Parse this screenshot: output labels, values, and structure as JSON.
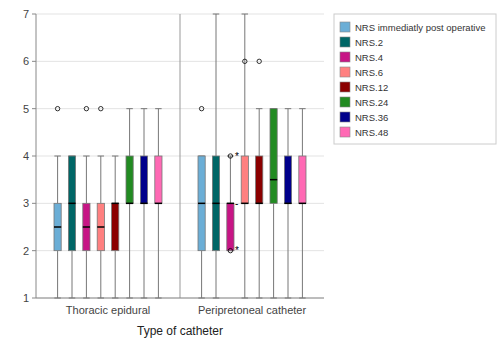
{
  "chart_data": {
    "type": "box",
    "title": "",
    "xlabel": "Type of catheter",
    "categories": [
      "Thoracic epidural",
      "Peripretoneal catheter"
    ],
    "series": [
      {
        "name": "NRS immediatly post operative",
        "color": "#6baed6",
        "values": [
          {
            "q1": 2.0,
            "median": 2.5,
            "q3": 3.0,
            "whislo": 1.0,
            "whishi": 4.0,
            "fliers": [
              5.0
            ]
          },
          {
            "q1": 2.0,
            "median": 3.0,
            "q3": 4.0,
            "whislo": 1.0,
            "whishi": 4.0,
            "fliers": [
              5.0
            ]
          }
        ]
      },
      {
        "name": "NRS.2",
        "color": "#006666",
        "values": [
          {
            "q1": 2.0,
            "median": 3.0,
            "q3": 4.0,
            "whislo": 1.0,
            "whishi": 4.0,
            "fliers": []
          },
          {
            "q1": 2.0,
            "median": 3.0,
            "q3": 4.0,
            "whislo": 1.0,
            "whishi": 7.0,
            "fliers": []
          }
        ]
      },
      {
        "name": "NRS.4",
        "color": "#C71585",
        "values": [
          {
            "q1": 2.0,
            "median": 2.5,
            "q3": 3.0,
            "whislo": 1.0,
            "whishi": 4.0,
            "fliers": [
              5.0
            ]
          },
          {
            "q1": 2.0,
            "median": 3.0,
            "q3": 3.0,
            "whislo": 2.0,
            "whishi": 4.0,
            "fliers": [
              2.0,
              4.0
            ]
          }
        ]
      },
      {
        "name": "NRS.6",
        "color": "#FF8080",
        "values": [
          {
            "q1": 2.0,
            "median": 2.5,
            "q3": 3.0,
            "whislo": 1.0,
            "whishi": 4.0,
            "fliers": [
              5.0
            ]
          },
          {
            "q1": 3.0,
            "median": 3.0,
            "q3": 4.0,
            "whislo": 1.0,
            "whishi": 7.0,
            "fliers": [
              6.0
            ]
          }
        ]
      },
      {
        "name": "NRS.12",
        "color": "#8B0000",
        "values": [
          {
            "q1": 2.0,
            "median": 3.0,
            "q3": 3.0,
            "whislo": 1.0,
            "whishi": 4.0,
            "fliers": []
          },
          {
            "q1": 3.0,
            "median": 3.0,
            "q3": 4.0,
            "whislo": 1.0,
            "whishi": 5.0,
            "fliers": [
              6.0
            ]
          }
        ]
      },
      {
        "name": "NRS.24",
        "color": "#228B22",
        "values": [
          {
            "q1": 3.0,
            "median": 3.0,
            "q3": 4.0,
            "whislo": 1.0,
            "whishi": 5.0,
            "fliers": []
          },
          {
            "q1": 3.0,
            "median": 3.5,
            "q3": 5.0,
            "whislo": 1.0,
            "whishi": 5.0,
            "fliers": []
          }
        ]
      },
      {
        "name": "NRS.36",
        "color": "#00008B",
        "values": [
          {
            "q1": 3.0,
            "median": 3.0,
            "q3": 4.0,
            "whislo": 1.0,
            "whishi": 5.0,
            "fliers": []
          },
          {
            "q1": 3.0,
            "median": 3.0,
            "q3": 4.0,
            "whislo": 1.0,
            "whishi": 5.0,
            "fliers": []
          }
        ]
      },
      {
        "name": "NRS.48",
        "color": "#FF69B4",
        "values": [
          {
            "q1": 3.0,
            "median": 3.0,
            "q3": 4.0,
            "whislo": 1.0,
            "whishi": 5.0,
            "fliers": []
          },
          {
            "q1": 3.0,
            "median": 3.0,
            "q3": 4.0,
            "whislo": 1.0,
            "whishi": 5.0,
            "fliers": []
          }
        ]
      }
    ],
    "annotations": [
      {
        "text": "*",
        "y": 4.0,
        "series": "NRS.4",
        "category": "Peripretoneal catheter"
      },
      {
        "text": "-",
        "y": 3.0,
        "series": "NRS.4",
        "category": "Peripretoneal catheter"
      },
      {
        "text": "*",
        "y": 2.0,
        "series": "NRS.4",
        "category": "Peripretoneal catheter"
      }
    ],
    "ylim": [
      1,
      7
    ],
    "yticks": [
      1,
      2,
      3,
      4,
      5,
      6,
      7
    ],
    "grid": true,
    "legend": "upper right"
  }
}
